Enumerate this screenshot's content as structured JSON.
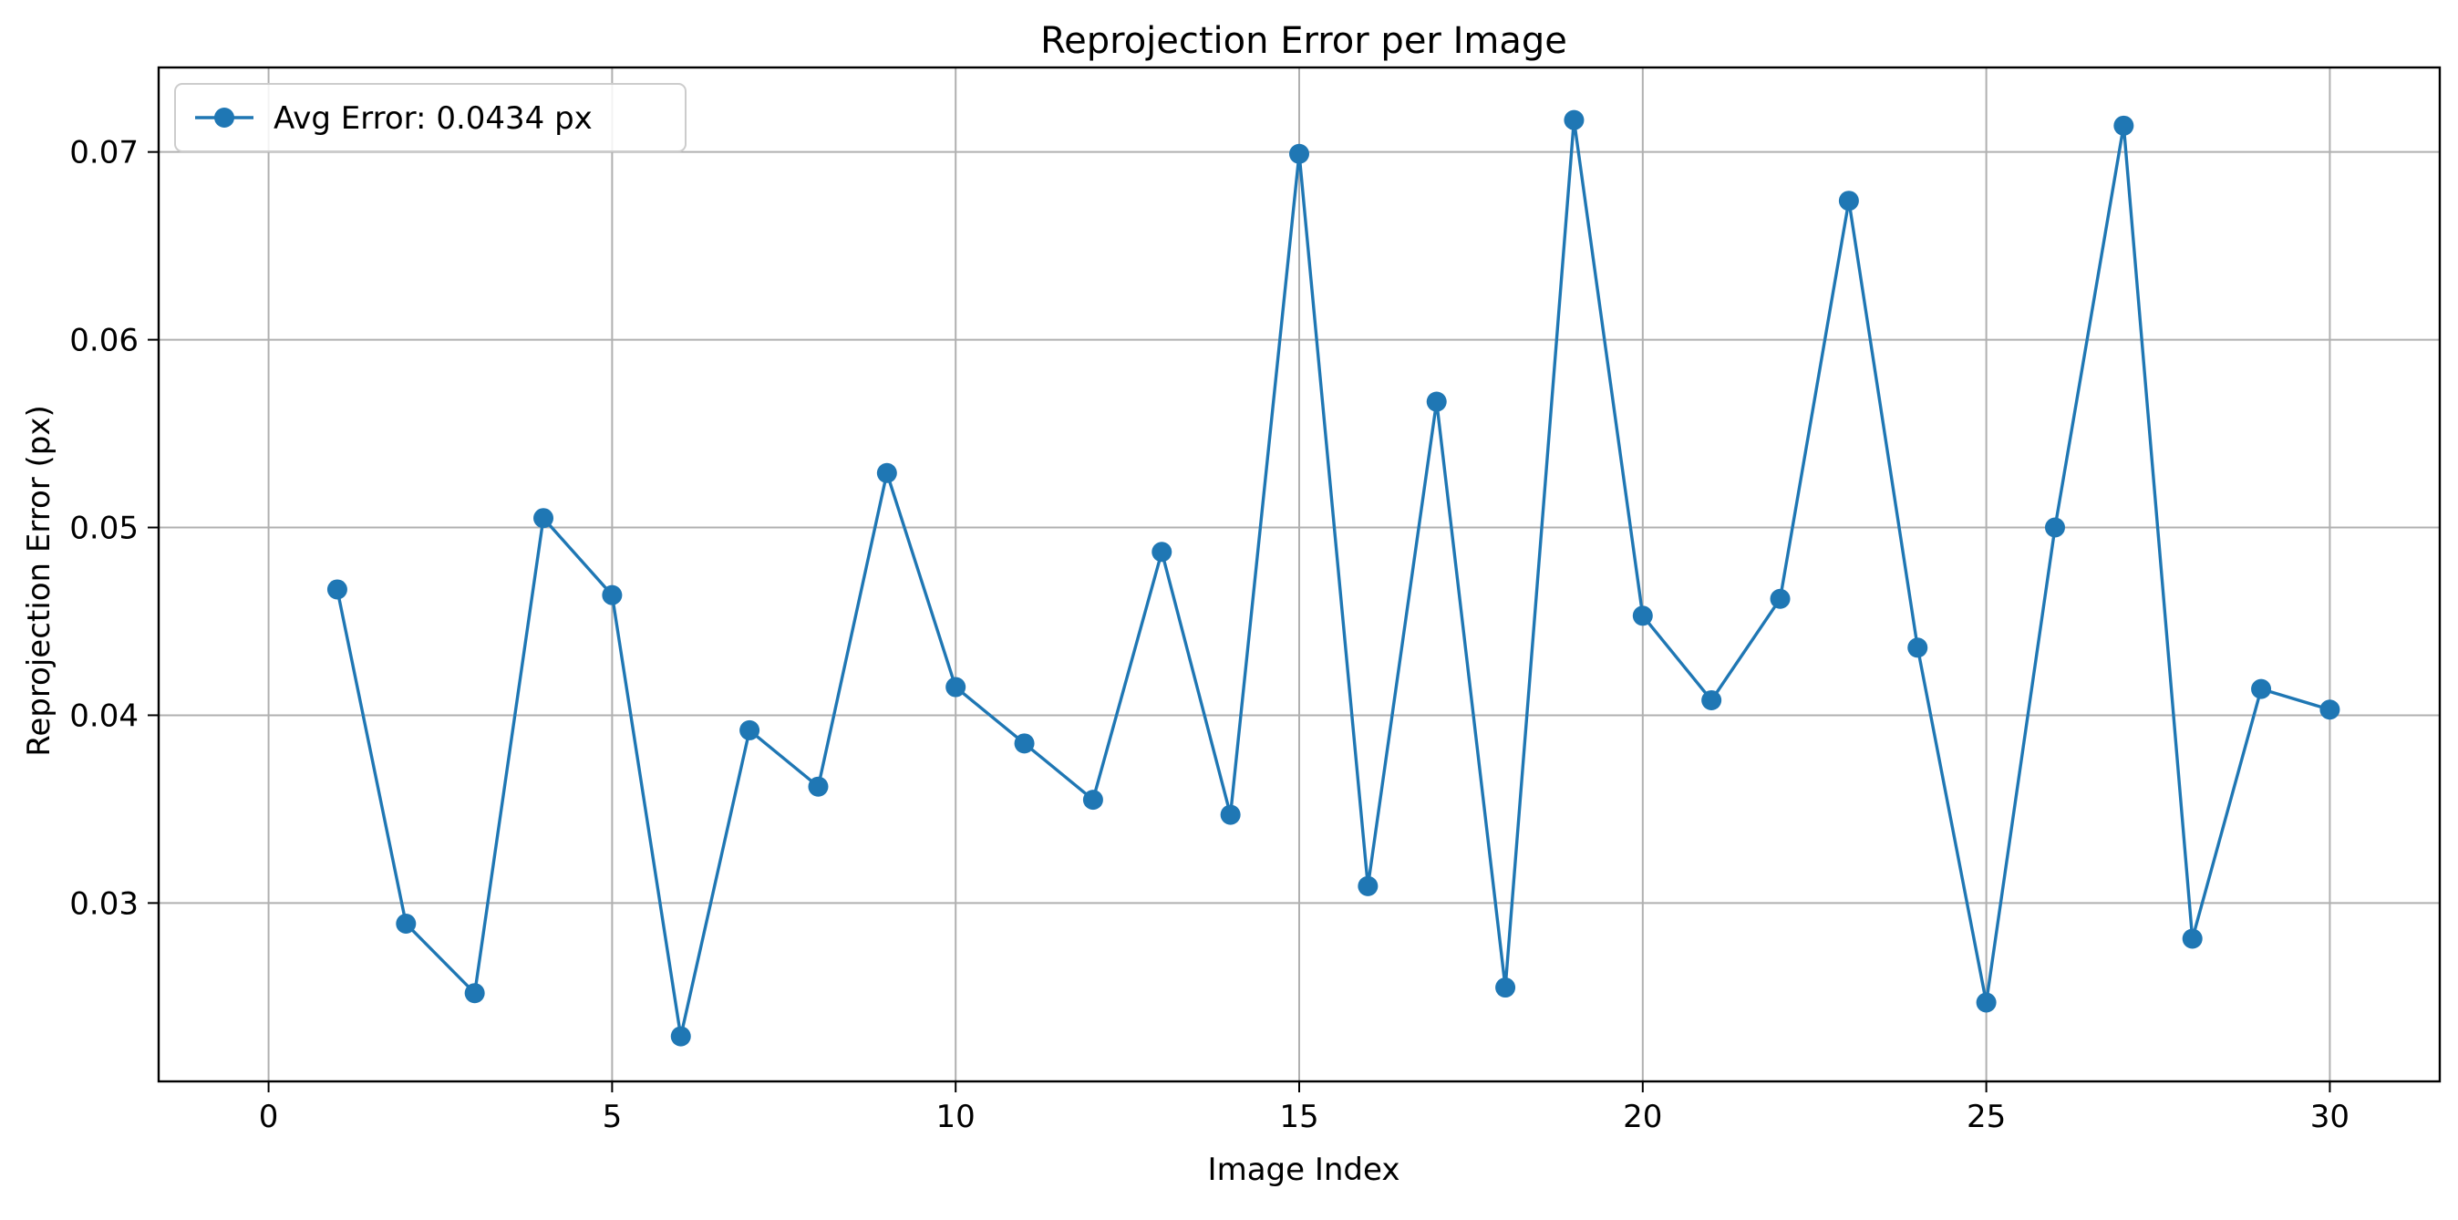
{
  "chart_data": {
    "type": "line",
    "title": "Reprojection Error per Image",
    "xlabel": "Image Index",
    "ylabel": "Reprojection Error (px)",
    "xlim": [
      -1.6,
      31.6
    ],
    "ylim": [
      0.0205,
      0.0745
    ],
    "xticks": [
      0,
      5,
      10,
      15,
      20,
      25,
      30
    ],
    "yticks": [
      0.03,
      0.04,
      0.05,
      0.06,
      0.07
    ],
    "xtick_labels": [
      "0",
      "5",
      "10",
      "15",
      "20",
      "25",
      "30"
    ],
    "ytick_labels": [
      "0.03",
      "0.04",
      "0.05",
      "0.06",
      "0.07"
    ],
    "grid": true,
    "legend_position": "top-left",
    "series": [
      {
        "name": "Avg Error: 0.0434 px",
        "color": "#1f77b4",
        "marker": "circle",
        "x": [
          1,
          2,
          3,
          4,
          5,
          6,
          7,
          8,
          9,
          10,
          11,
          12,
          13,
          14,
          15,
          16,
          17,
          18,
          19,
          20,
          21,
          22,
          23,
          24,
          25,
          26,
          27,
          28,
          29,
          30
        ],
        "y": [
          0.0467,
          0.0289,
          0.0252,
          0.0505,
          0.0464,
          0.0229,
          0.0392,
          0.0362,
          0.0529,
          0.0415,
          0.0385,
          0.0355,
          0.0487,
          0.0347,
          0.0699,
          0.0309,
          0.0567,
          0.0255,
          0.0717,
          0.0453,
          0.0408,
          0.0462,
          0.0674,
          0.0436,
          0.0247,
          0.05,
          0.0714,
          0.0281,
          0.0414,
          0.0403
        ]
      }
    ]
  }
}
